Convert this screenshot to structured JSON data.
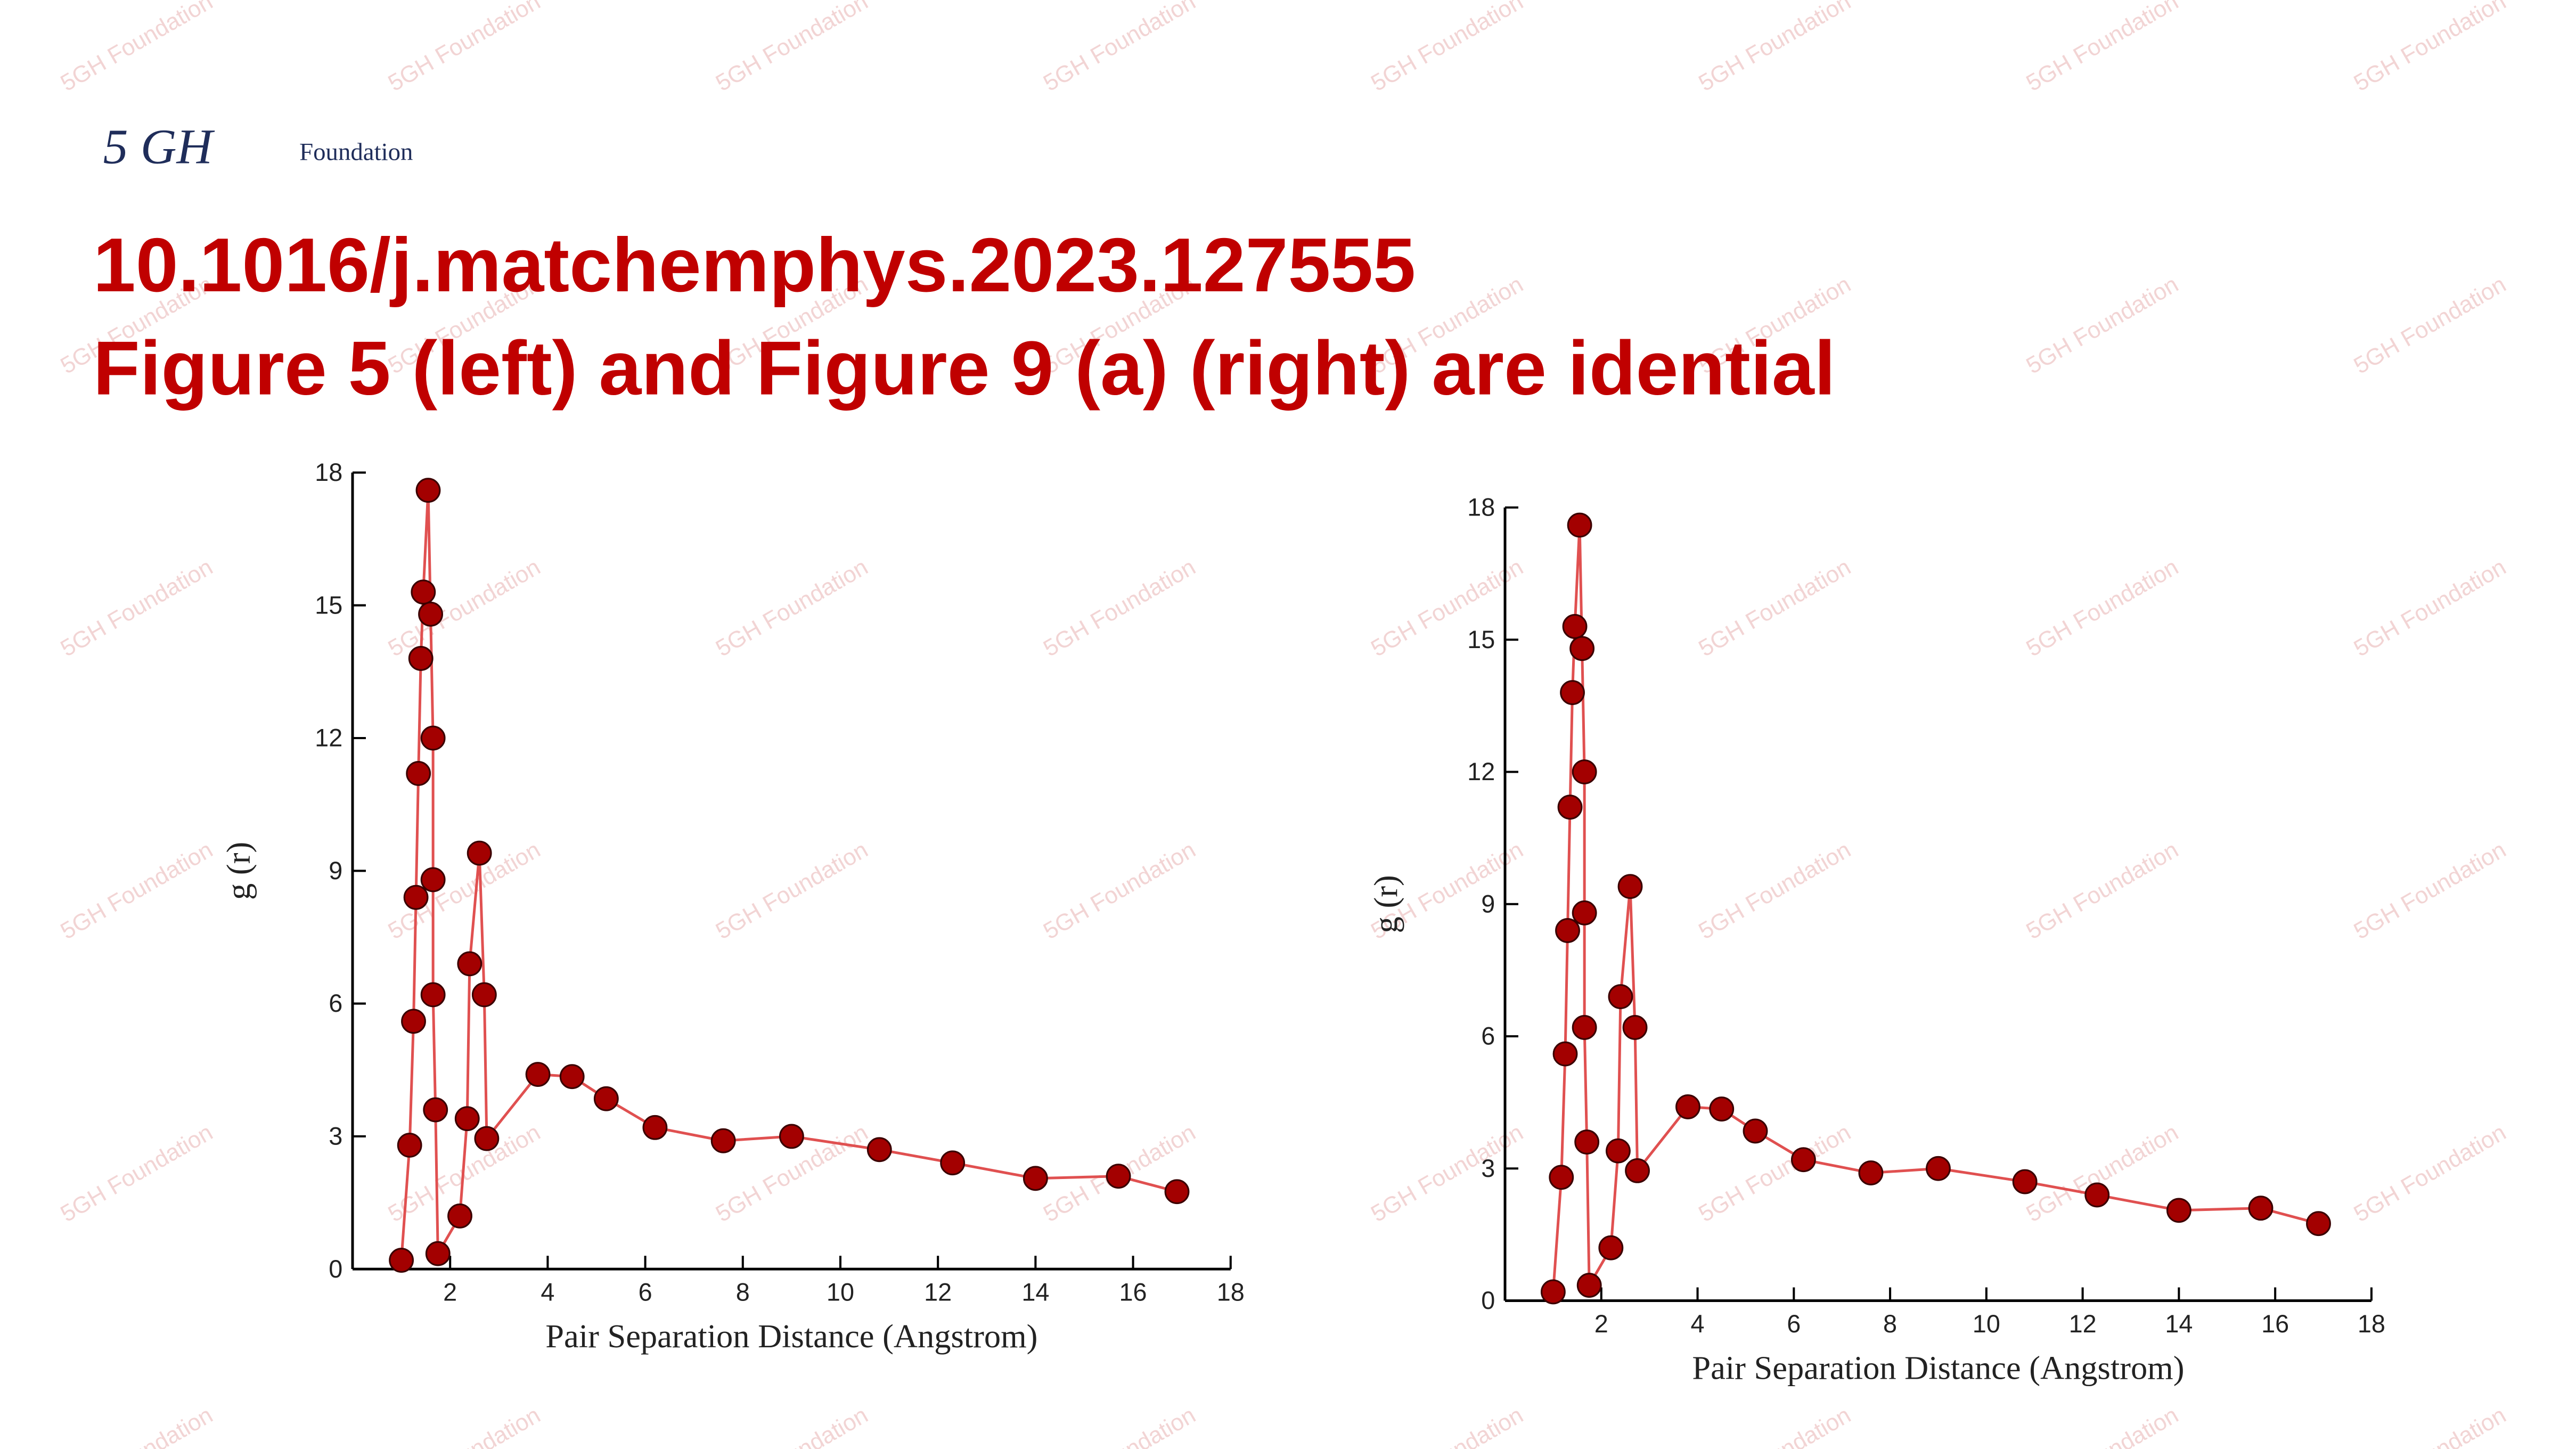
{
  "logo": {
    "mark": "5 GH",
    "word": "Foundation"
  },
  "title_lines": [
    "10.1016/j.matchemphys.2023.127555",
    "Figure 5 (left) and Figure 9 (a) (right) are idential"
  ],
  "watermark": "5GH Foundation",
  "chart_data": [
    {
      "type": "line",
      "xlabel": "Pair Separation Distance (Angstrom)",
      "ylabel": "g (r)",
      "x": [
        1.0,
        1.17,
        1.25,
        1.3,
        1.35,
        1.4,
        1.45,
        1.55,
        1.6,
        1.65,
        1.65,
        1.65,
        1.7,
        1.75,
        2.2,
        2.35,
        2.4,
        2.6,
        2.7,
        2.75,
        3.8,
        4.5,
        5.2,
        6.2,
        7.6,
        9.0,
        10.8,
        12.3,
        14.0,
        15.7,
        16.9
      ],
      "values": [
        0.2,
        2.8,
        5.6,
        8.4,
        11.2,
        13.8,
        15.3,
        17.6,
        14.8,
        12.0,
        8.8,
        6.2,
        3.6,
        0.35,
        1.2,
        3.4,
        6.9,
        9.4,
        6.2,
        2.95,
        4.4,
        4.35,
        3.85,
        3.2,
        2.9,
        3.0,
        2.7,
        2.4,
        2.05,
        2.1,
        1.75
      ],
      "color": "#e05050",
      "marker_color": "#a30000",
      "xlim": [
        0,
        18
      ],
      "xticks": [
        2,
        4,
        6,
        8,
        10,
        12,
        14,
        16,
        18
      ],
      "ylim": [
        0,
        18
      ],
      "yticks": [
        0,
        3,
        6,
        9,
        12,
        15,
        18
      ]
    },
    {
      "type": "line",
      "xlabel": "Pair Separation Distance (Angstrom)",
      "ylabel": "g (r)",
      "x": [
        1.0,
        1.17,
        1.25,
        1.3,
        1.35,
        1.4,
        1.45,
        1.55,
        1.6,
        1.65,
        1.65,
        1.65,
        1.7,
        1.75,
        2.2,
        2.35,
        2.4,
        2.6,
        2.7,
        2.75,
        3.8,
        4.5,
        5.2,
        6.2,
        7.6,
        9.0,
        10.8,
        12.3,
        14.0,
        15.7,
        16.9
      ],
      "values": [
        0.2,
        2.8,
        5.6,
        8.4,
        11.2,
        13.8,
        15.3,
        17.6,
        14.8,
        12.0,
        8.8,
        6.2,
        3.6,
        0.35,
        1.2,
        3.4,
        6.9,
        9.4,
        6.2,
        2.95,
        4.4,
        4.35,
        3.85,
        3.2,
        2.9,
        3.0,
        2.7,
        2.4,
        2.05,
        2.1,
        1.75
      ],
      "color": "#e05050",
      "marker_color": "#a30000",
      "xlim": [
        0,
        18
      ],
      "xticks": [
        2,
        4,
        6,
        8,
        10,
        12,
        14,
        16,
        18
      ],
      "ylim": [
        0,
        18
      ],
      "yticks": [
        0,
        3,
        6,
        9,
        12,
        15,
        18
      ]
    }
  ]
}
